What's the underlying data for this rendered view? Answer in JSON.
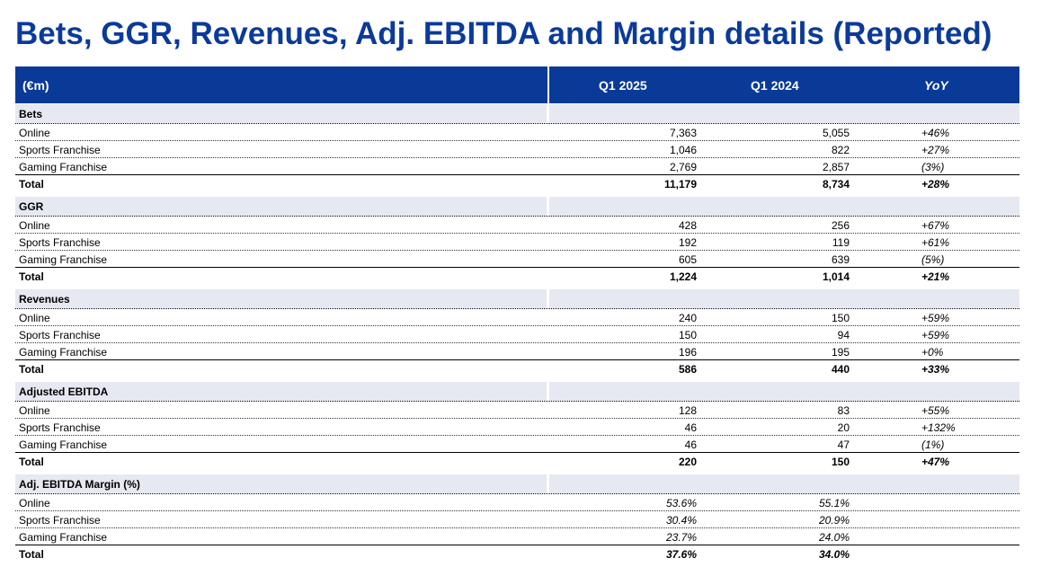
{
  "title": "Bets, GGR, Revenues, Adj. EBITDA and Margin details (Reported)",
  "header": {
    "unit": "(€m)",
    "col1": "Q1 2025",
    "col2": "Q1 2024",
    "col3": "YoY"
  },
  "sections": [
    {
      "name": "Bets",
      "rows": [
        {
          "label": "Online",
          "q1_2025": "7,363",
          "q1_2024": "5,055",
          "yoy": "+46%"
        },
        {
          "label": "Sports Franchise",
          "q1_2025": "1,046",
          "q1_2024": "822",
          "yoy": "+27%"
        },
        {
          "label": "Gaming Franchise",
          "q1_2025": "2,769",
          "q1_2024": "2,857",
          "yoy": "(3%)"
        },
        {
          "label": "Total",
          "q1_2025": "11,179",
          "q1_2024": "8,734",
          "yoy": "+28%"
        }
      ]
    },
    {
      "name": "GGR",
      "rows": [
        {
          "label": "Online",
          "q1_2025": "428",
          "q1_2024": "256",
          "yoy": "+67%"
        },
        {
          "label": "Sports Franchise",
          "q1_2025": "192",
          "q1_2024": "119",
          "yoy": "+61%"
        },
        {
          "label": "Gaming Franchise",
          "q1_2025": "605",
          "q1_2024": "639",
          "yoy": "(5%)"
        },
        {
          "label": "Total",
          "q1_2025": "1,224",
          "q1_2024": "1,014",
          "yoy": "+21%"
        }
      ]
    },
    {
      "name": "Revenues",
      "rows": [
        {
          "label": "Online",
          "q1_2025": "240",
          "q1_2024": "150",
          "yoy": "+59%"
        },
        {
          "label": "Sports Franchise",
          "q1_2025": "150",
          "q1_2024": "94",
          "yoy": "+59%"
        },
        {
          "label": "Gaming Franchise",
          "q1_2025": "196",
          "q1_2024": "195",
          "yoy": "+0%"
        },
        {
          "label": "Total",
          "q1_2025": "586",
          "q1_2024": "440",
          "yoy": "+33%"
        }
      ]
    },
    {
      "name": "Adjusted EBITDA",
      "rows": [
        {
          "label": "Online",
          "q1_2025": "128",
          "q1_2024": "83",
          "yoy": "+55%"
        },
        {
          "label": "Sports Franchise",
          "q1_2025": "46",
          "q1_2024": "20",
          "yoy": "+132%"
        },
        {
          "label": "Gaming Franchise",
          "q1_2025": "46",
          "q1_2024": "47",
          "yoy": "(1%)"
        },
        {
          "label": "Total",
          "q1_2025": "220",
          "q1_2024": "150",
          "yoy": "+47%"
        }
      ]
    },
    {
      "name": "Adj. EBITDA Margin (%)",
      "rows": [
        {
          "label": "Online",
          "q1_2025": "53.6%",
          "q1_2024": "55.1%",
          "yoy": ""
        },
        {
          "label": "Sports Franchise",
          "q1_2025": "30.4%",
          "q1_2024": "20.9%",
          "yoy": ""
        },
        {
          "label": "Gaming Franchise",
          "q1_2025": "23.7%",
          "q1_2024": "24.0%",
          "yoy": ""
        },
        {
          "label": "Total",
          "q1_2025": "37.6%",
          "q1_2024": "34.0%",
          "yoy": ""
        }
      ]
    }
  ],
  "colors": {
    "title": "#0b3a9a",
    "header_bg": "#0a3a97",
    "section_bg": "#e6e8f2"
  }
}
